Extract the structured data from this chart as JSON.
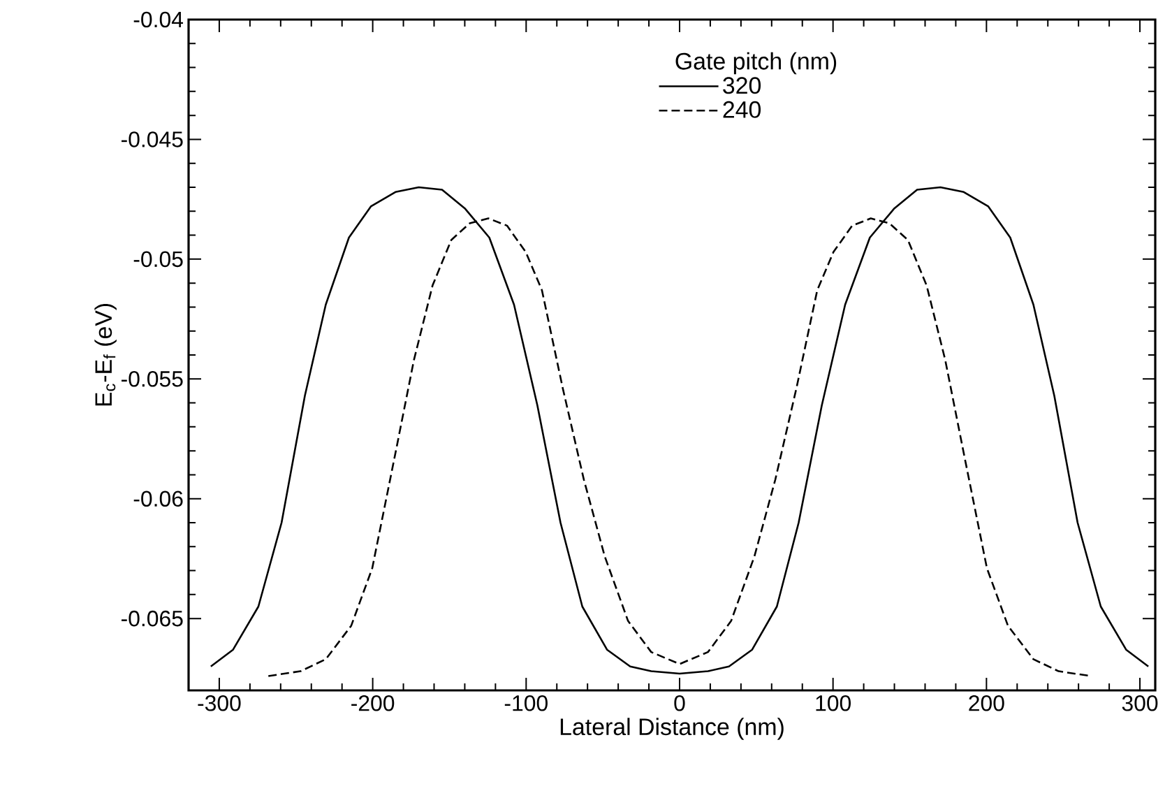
{
  "chart_data": {
    "type": "line",
    "xlabel": "Lateral Distance (nm)",
    "ylabel": "E$_{c}$-E$_{f}$ (eV)",
    "legend_title": "Gate pitch (nm)",
    "legend": "top",
    "grid": false,
    "marker": "none",
    "xlim": [
      -320,
      310
    ],
    "ylim": [
      -0.068,
      -0.04
    ],
    "xticks": [
      -300,
      -200,
      -100,
      0,
      100,
      200,
      300
    ],
    "yticks": [
      -0.065,
      -0.06,
      -0.055,
      -0.05,
      -0.045,
      -0.04
    ],
    "series": [
      {
        "name": "320",
        "color": "#000000",
        "line_style": "solid",
        "x": [
          -305.5,
          -291,
          -274.5,
          -259.4,
          -244.2,
          -230.6,
          -215.5,
          -201.2,
          -185.2,
          -170,
          -154.8,
          -139.7,
          -124,
          -107.9,
          -92.7,
          -77.6,
          -63.4,
          -47.3,
          -32.2,
          -18.5,
          0,
          18.5,
          32.2,
          47.3,
          63.4,
          77.6,
          92.7,
          107.9,
          124,
          139.7,
          154.8,
          170,
          185.2,
          201.2,
          215.5,
          230.6,
          244.2,
          259.4,
          274.5,
          291,
          305.5
        ],
        "values": [
          -0.067,
          -0.0663,
          -0.0645,
          -0.061,
          -0.0557,
          -0.0519,
          -0.0491,
          -0.0478,
          -0.0472,
          -0.047,
          -0.0471,
          -0.0479,
          -0.0491,
          -0.0519,
          -0.0561,
          -0.061,
          -0.0645,
          -0.0663,
          -0.067,
          -0.0672,
          -0.0673,
          -0.0672,
          -0.067,
          -0.0663,
          -0.0645,
          -0.061,
          -0.0561,
          -0.0519,
          -0.0491,
          -0.0479,
          -0.0471,
          -0.047,
          -0.0472,
          -0.0478,
          -0.0491,
          -0.0519,
          -0.0557,
          -0.061,
          -0.0645,
          -0.0663,
          -0.067
        ]
      },
      {
        "name": "240",
        "color": "#000000",
        "line_style": "dashed",
        "x": [
          -268,
          -247,
          -230.6,
          -214,
          -200.3,
          -185.2,
          -173.1,
          -161,
          -148.8,
          -136.7,
          -124.6,
          -112.5,
          -100.3,
          -89.7,
          -76.1,
          -62.4,
          -48.8,
          -33.6,
          -18.5,
          0,
          18.5,
          33.6,
          48.8,
          62.4,
          76.1,
          89.7,
          100.3,
          112.5,
          124.6,
          136.7,
          148.8,
          161,
          173.1,
          185.2,
          200.3,
          214,
          230.6,
          247,
          268
        ],
        "values": [
          -0.0674,
          -0.0672,
          -0.0667,
          -0.0653,
          -0.0629,
          -0.0581,
          -0.0542,
          -0.0511,
          -0.0492,
          -0.0485,
          -0.0483,
          -0.0486,
          -0.0497,
          -0.0513,
          -0.0554,
          -0.0592,
          -0.0624,
          -0.0651,
          -0.0664,
          -0.0669,
          -0.0664,
          -0.0651,
          -0.0624,
          -0.0592,
          -0.0554,
          -0.0513,
          -0.0497,
          -0.0486,
          -0.0483,
          -0.0485,
          -0.0492,
          -0.0511,
          -0.0542,
          -0.0581,
          -0.0629,
          -0.0653,
          -0.0667,
          -0.0672,
          -0.0674
        ]
      }
    ]
  }
}
